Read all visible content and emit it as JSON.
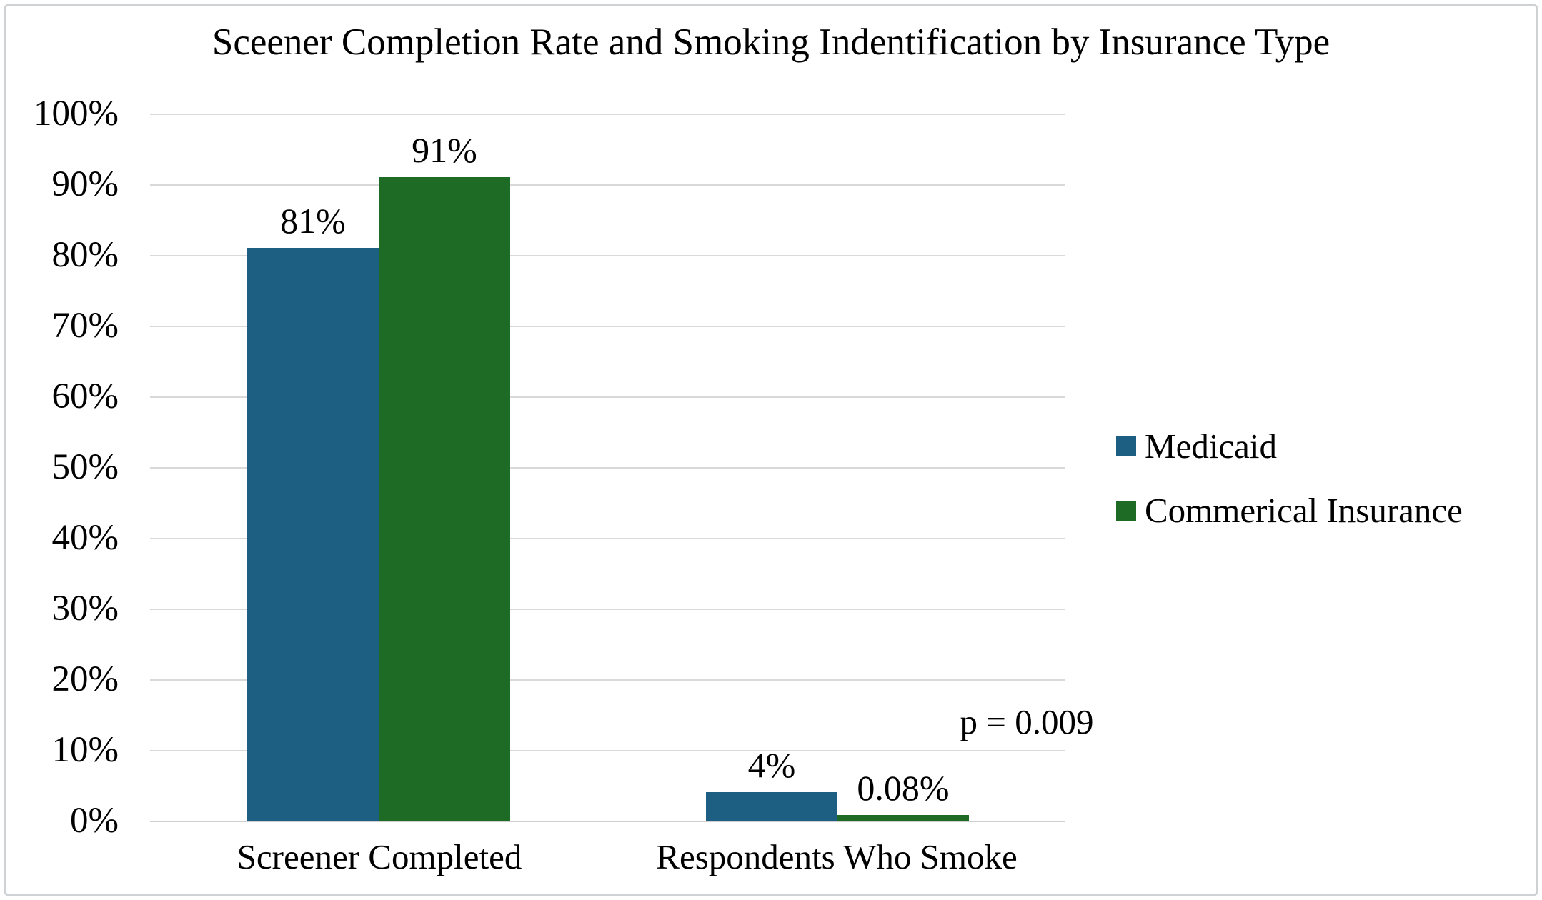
{
  "chart_data": {
    "type": "bar",
    "title": "Sceener Completion Rate and Smoking Indentification by Insurance Type",
    "categories": [
      "Screener Completed",
      "Respondents Who Smoke"
    ],
    "series": [
      {
        "name": "Medicaid",
        "color": "#1d5f82",
        "values": [
          81,
          4
        ],
        "value_labels": [
          "81%",
          "4%"
        ]
      },
      {
        "name": "Commerical Insurance",
        "color": "#1e6b26",
        "values": [
          91,
          0.08
        ],
        "value_labels": [
          "91%",
          "0.08%"
        ]
      }
    ],
    "annotation": {
      "text": "p = 0.009"
    },
    "y_axis": {
      "min": 0,
      "max": 100,
      "step": 10,
      "tick_labels": [
        "100%",
        "90%",
        "80%",
        "70%",
        "60%",
        "50%",
        "40%",
        "30%",
        "20%",
        "10%",
        "0%"
      ]
    },
    "xlabel": "",
    "ylabel": "",
    "grid": true,
    "legend_position": "right",
    "colors": {
      "gridline": "#d9d9d9",
      "frame_border": "#cfd2d4",
      "text": "#000000"
    }
  }
}
